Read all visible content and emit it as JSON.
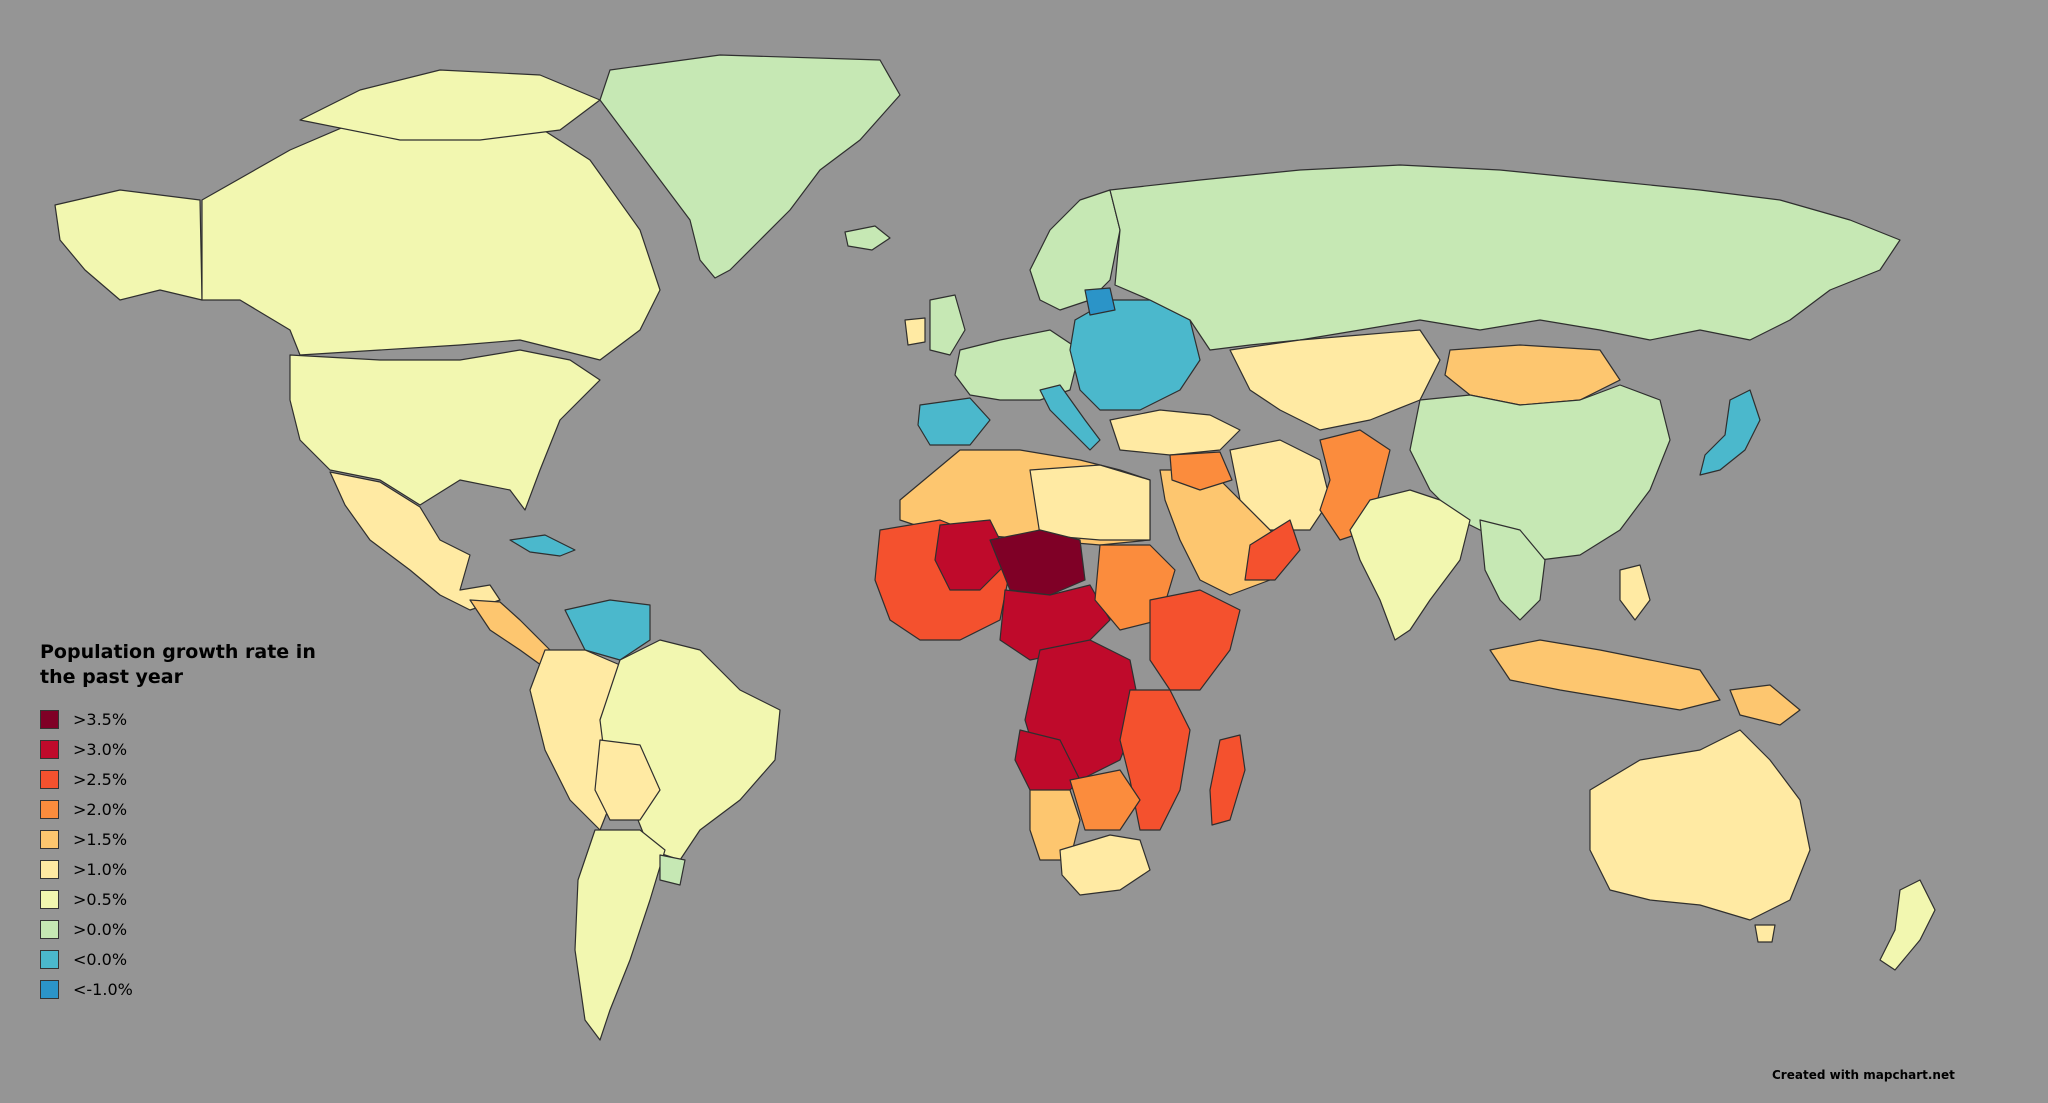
{
  "legend": {
    "title": "Population growth rate in the past year",
    "items": [
      {
        "label": ">3.5%",
        "color": "#7f0026"
      },
      {
        "label": ">3.0%",
        "color": "#bf0a2b"
      },
      {
        "label": ">2.5%",
        "color": "#f4512e"
      },
      {
        "label": ">2.0%",
        "color": "#fb8c3d"
      },
      {
        "label": ">1.5%",
        "color": "#fdc66f"
      },
      {
        "label": ">1.0%",
        "color": "#ffeaa3"
      },
      {
        "label": ">0.5%",
        "color": "#f2f7b0"
      },
      {
        "label": ">0.0%",
        "color": "#c6e8b4"
      },
      {
        "label": "<0.0%",
        "color": "#4bb8cc"
      },
      {
        "label": "<-1.0%",
        "color": "#2b94c8"
      }
    ]
  },
  "credit": "Created with mapchart.net",
  "colors": {
    "ocean": "#959595",
    "border": "#2f2f2f"
  }
}
